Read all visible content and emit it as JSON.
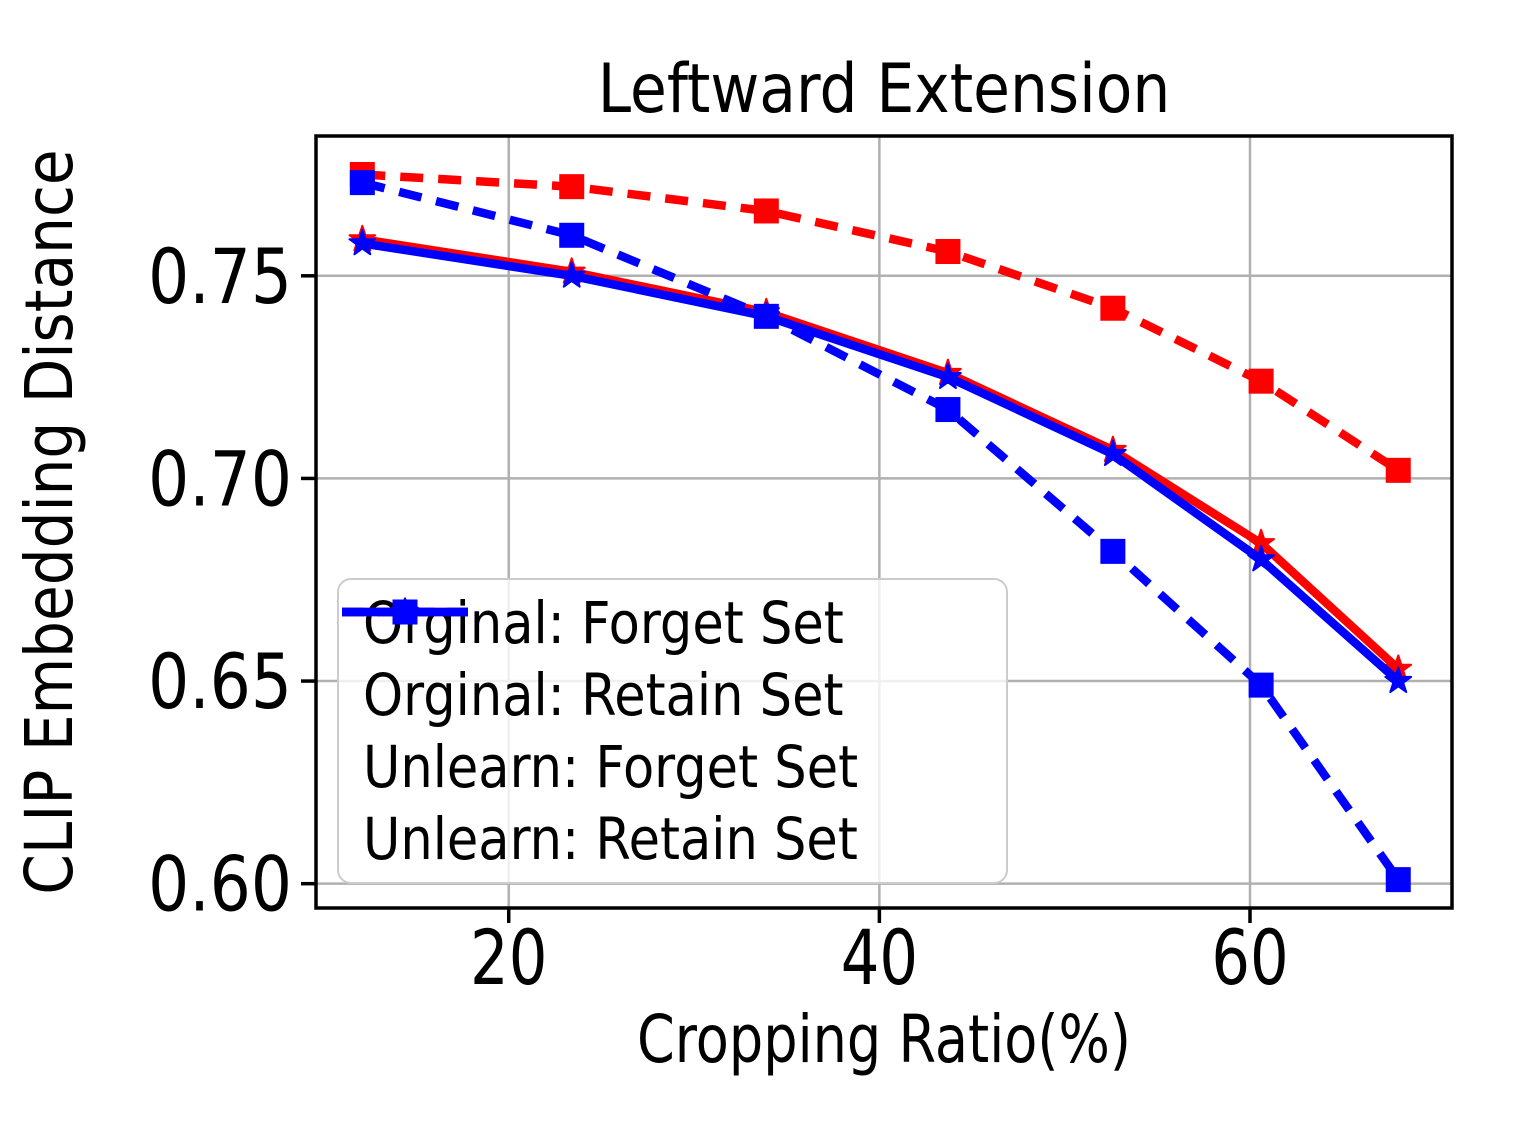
{
  "chart_data": {
    "type": "line",
    "title": "Leftward Extension",
    "xlabel": "Cropping Ratio(%)",
    "ylabel": "CLIP Embedding Distance",
    "x": [
      12.1,
      23.4,
      33.9,
      43.7,
      52.6,
      60.6,
      68.0
    ],
    "series": [
      {
        "name": "Orginal: Forget Set",
        "color": "#ff0000",
        "line_style": "dashed",
        "marker": "square",
        "values": [
          0.775,
          0.772,
          0.766,
          0.756,
          0.742,
          0.724,
          0.702
        ]
      },
      {
        "name": "Orginal: Retain Set",
        "color": "#ff0000",
        "line_style": "solid",
        "marker": "star",
        "values": [
          0.759,
          0.751,
          0.741,
          0.726,
          0.707,
          0.684,
          0.653
        ]
      },
      {
        "name": "Unlearn: Forget Set",
        "color": "#0000ff",
        "line_style": "dashed",
        "marker": "square",
        "values": [
          0.773,
          0.76,
          0.74,
          0.717,
          0.682,
          0.649,
          0.601
        ]
      },
      {
        "name": "Unlearn: Retain Set",
        "color": "#0000ff",
        "line_style": "solid",
        "marker": "star",
        "values": [
          0.758,
          0.75,
          0.74,
          0.725,
          0.706,
          0.68,
          0.65
        ]
      }
    ],
    "xticks": {
      "values": [
        20,
        40,
        60
      ],
      "labels": [
        "20",
        "40",
        "60"
      ]
    },
    "yticks": {
      "values": [
        0.6,
        0.65,
        0.7,
        0.75
      ],
      "labels": [
        "0.60",
        "0.65",
        "0.70",
        "0.75"
      ]
    },
    "xlim": [
      9.6,
      70.9
    ],
    "ylim": [
      0.594,
      0.7845
    ],
    "grid": true,
    "legend_position": "lower-left"
  },
  "colors": {
    "red": "#ff0000",
    "blue": "#0000ff",
    "grid": "#b0b0b0",
    "axis": "#000000",
    "legend_border": "#cccccc",
    "background": "#ffffff"
  }
}
